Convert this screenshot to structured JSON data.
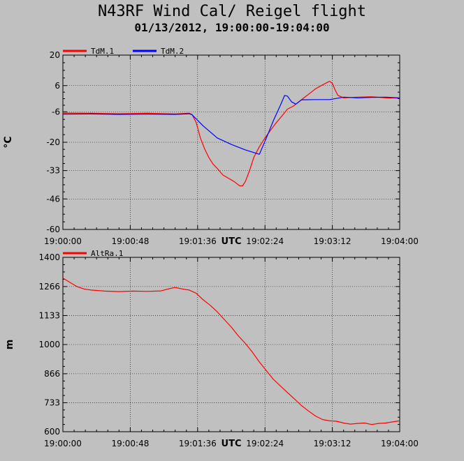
{
  "title": "N43RF Wind Cal/ Reigel flight",
  "subtitle": "01/13/2012, 19:00:00-19:04:00",
  "chart_data": [
    {
      "type": "line",
      "ylabel": "°C",
      "xlabel": "UTC",
      "ylim": [
        -60,
        20
      ],
      "yticks": [
        "20",
        "6",
        "-6",
        "-20",
        "-33",
        "-46",
        "-60"
      ],
      "ytick_values": [
        20,
        6,
        -6,
        -20,
        -33,
        -46,
        -60
      ],
      "xlim": [
        0,
        240
      ],
      "xticks": [
        "19:00:00",
        "19:00:48",
        "19:01:36",
        "19:02:24",
        "19:03:12",
        "19:04:00"
      ],
      "grid": true,
      "legend_position": "top-left",
      "series": [
        {
          "name": "TdM.1",
          "color": "#ff0000",
          "x": [
            0,
            20,
            40,
            60,
            80,
            90,
            92,
            95,
            98,
            101,
            104,
            107,
            110,
            114,
            118,
            122,
            126,
            128,
            130,
            133,
            136,
            140,
            144,
            148,
            152,
            156,
            160,
            164,
            168,
            172,
            176,
            180,
            184,
            190,
            192,
            194,
            196,
            200,
            210,
            220,
            230,
            240
          ],
          "y": [
            -6.6,
            -6.7,
            -6.9,
            -6.7,
            -7.0,
            -6.7,
            -7.2,
            -11,
            -18,
            -23,
            -27,
            -30,
            -32,
            -35,
            -36.5,
            -38,
            -40,
            -40,
            -38,
            -33,
            -27,
            -22,
            -18,
            -14.5,
            -11,
            -8,
            -4.8,
            -3.5,
            -1.5,
            0.5,
            2.5,
            4.5,
            6,
            8,
            7,
            4,
            1.5,
            0.4,
            0.7,
            0.9,
            0.4,
            0.3
          ]
        },
        {
          "name": "TdM.2",
          "color": "#0000ff",
          "x": [
            0,
            20,
            40,
            60,
            80,
            90,
            92,
            100,
            110,
            120,
            130,
            135,
            140,
            145,
            150,
            155,
            158,
            160,
            163,
            166,
            170,
            180,
            190,
            200,
            210,
            220,
            230,
            240
          ],
          "y": [
            -7.1,
            -7.0,
            -7.2,
            -7.1,
            -7.2,
            -6.9,
            -7.4,
            -12.5,
            -18,
            -21,
            -23.5,
            -24.5,
            -25.5,
            -18,
            -10,
            -3,
            1.5,
            1.2,
            -1.5,
            -2.5,
            -0.5,
            -0.4,
            -0.4,
            0.7,
            0.4,
            0.6,
            0.7,
            0.4
          ]
        }
      ]
    },
    {
      "type": "line",
      "ylabel": "m",
      "xlabel": "UTC",
      "ylim": [
        600,
        1400
      ],
      "yticks": [
        "1400",
        "1266",
        "1133",
        "1000",
        "866",
        "733",
        "600"
      ],
      "ytick_values": [
        1400,
        1266,
        1133,
        1000,
        866,
        733,
        600
      ],
      "xlim": [
        0,
        240
      ],
      "xticks": [
        "19:00:00",
        "19:00:48",
        "19:01:36",
        "19:02:24",
        "19:03:12",
        "19:04:00"
      ],
      "grid": true,
      "legend_position": "top-left",
      "series": [
        {
          "name": "AltRa.1",
          "color": "#ff0000",
          "x": [
            0,
            5,
            10,
            15,
            20,
            30,
            40,
            50,
            60,
            70,
            75,
            80,
            85,
            90,
            95,
            100,
            105,
            110,
            115,
            120,
            125,
            130,
            135,
            140,
            145,
            150,
            155,
            160,
            165,
            170,
            175,
            180,
            185,
            190,
            195,
            200,
            205,
            210,
            215,
            220,
            225,
            230,
            235,
            240
          ],
          "y": [
            1305,
            1285,
            1266,
            1255,
            1250,
            1245,
            1243,
            1245,
            1244,
            1246,
            1255,
            1262,
            1255,
            1250,
            1235,
            1205,
            1180,
            1150,
            1115,
            1080,
            1040,
            1005,
            965,
            920,
            880,
            840,
            810,
            780,
            750,
            720,
            695,
            672,
            656,
            650,
            648,
            640,
            635,
            638,
            640,
            633,
            638,
            640,
            645,
            650
          ]
        }
      ]
    }
  ]
}
